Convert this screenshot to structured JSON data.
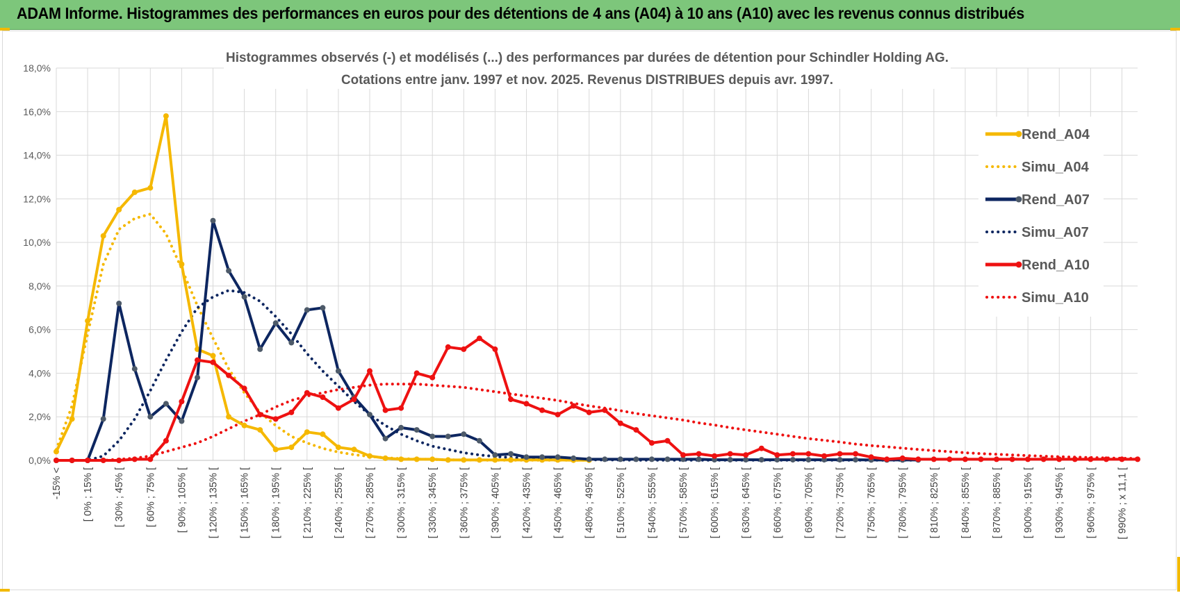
{
  "header": {
    "title": "ADAM Informe. Histogrammes des performances en euros pour des détentions de 4 ans (A04) à 10 ans (A10) avec les revenus connus distribués"
  },
  "colors": {
    "header_bg": "#7dc67b",
    "yellow": "#f5b800",
    "navy": "#0d2660",
    "red": "#ee1111",
    "grid": "#d9d9d9",
    "marker_gray": "#4d5a69"
  },
  "chart_data": {
    "type": "line",
    "title": "Histogrammes observés (-) et modélisés (...) des performances par durées de détention pour Schindler Holding AG.",
    "subtitle": "Cotations entre janv. 1997 et nov. 2025. Revenus DISTRIBUES depuis avr. 1997.",
    "xlabel": "",
    "ylabel": "",
    "ylim": [
      0,
      18
    ],
    "y_ticks": [
      "0,0%",
      "2,0%",
      "4,0%",
      "6,0%",
      "8,0%",
      "10,0%",
      "12,0%",
      "14,0%",
      "16,0%",
      "18,0%"
    ],
    "x_tick_labels": [
      "-15% <",
      "[ 0% ; 15% [",
      "[ 30% ; 45% [",
      "[ 60% ; 75% [",
      "[ 90% ; 105% [",
      "[ 120% ; 135% [",
      "[ 150% ; 165% [",
      "[ 180% ; 195% [",
      "[ 210% ; 225% [",
      "[ 240% ; 255% [",
      "[ 270% ; 285% [",
      "[ 300% ; 315% [",
      "[ 330% ; 345% [",
      "[ 360% ; 375% [",
      "[ 390% ; 405% [",
      "[ 420% ; 435% [",
      "[ 450% ; 465% [",
      "[ 480% ; 495% [",
      "[ 510% ; 525% [",
      "[ 540% ; 555% [",
      "[ 570% ; 585% [",
      "[ 600% ; 615% [",
      "[ 630% ; 645% [",
      "[ 660% ; 675% [",
      "[ 690% ; 705% [",
      "[ 720% ; 735% [",
      "[ 750% ; 765% [",
      "[ 780% ; 795% [",
      "[ 810% ; 825% [",
      "[ 840% ; 855% [",
      "[ 870% ; 885% [",
      "[ 900% ; 915% [",
      "[ 930% ; 945% [",
      "[ 960% ; 975% [",
      "[ 990% ; x 11,1 ["
    ],
    "category_count": 70,
    "grid": true,
    "legend_position": "right",
    "series": [
      {
        "name": "Rend_A04",
        "style": "solid",
        "color": "#f5b800",
        "marker_color": "#f5b800",
        "values": [
          0.4,
          1.9,
          6.4,
          10.3,
          11.5,
          12.3,
          12.5,
          15.8,
          9.0,
          5.1,
          4.8,
          2.0,
          1.6,
          1.4,
          0.5,
          0.6,
          1.3,
          1.2,
          0.6,
          0.5,
          0.2,
          0.1,
          0.05,
          0.05,
          0.05,
          0.02,
          0.02,
          0.02,
          0.02,
          0.02,
          0.02,
          0.02,
          0.02,
          0.01,
          0.01
        ]
      },
      {
        "name": "Simu_A04",
        "style": "dotted",
        "color": "#f5b800",
        "values": [
          0.5,
          2.5,
          5.8,
          9.0,
          10.6,
          11.1,
          11.3,
          10.4,
          8.8,
          7.1,
          5.6,
          4.2,
          3.1,
          2.2,
          1.6,
          1.1,
          0.8,
          0.55,
          0.38,
          0.26,
          0.18,
          0.12,
          0.08,
          0.06,
          0.04,
          0.03,
          0.02,
          0.01,
          0.01,
          0.01,
          0.01,
          0.01,
          0.01,
          0.01,
          0.01
        ]
      },
      {
        "name": "Rend_A07",
        "style": "solid",
        "color": "#0d2660",
        "marker_color": "#4d5a69",
        "values": [
          0,
          0,
          0,
          1.9,
          7.2,
          4.2,
          2.0,
          2.6,
          1.8,
          3.8,
          11.0,
          8.7,
          7.5,
          5.1,
          6.3,
          5.4,
          6.9,
          7.0,
          4.1,
          2.9,
          2.1,
          1.0,
          1.5,
          1.4,
          1.1,
          1.1,
          1.2,
          0.9,
          0.25,
          0.3,
          0.15,
          0.15,
          0.15,
          0.1,
          0.05,
          0.05,
          0.05,
          0.05,
          0.05,
          0.05,
          0.05,
          0.05,
          0.03,
          0.03,
          0.03,
          0.03,
          0.03,
          0.03,
          0.03,
          0.03,
          0.03,
          0.03,
          0.02,
          0.02,
          0.02,
          0.02
        ]
      },
      {
        "name": "Simu_A07",
        "style": "dotted",
        "color": "#0d2660",
        "values": [
          0,
          0,
          0,
          0.2,
          0.9,
          1.9,
          3.2,
          4.6,
          5.9,
          7.0,
          7.5,
          7.8,
          7.7,
          7.3,
          6.6,
          5.8,
          4.9,
          4.1,
          3.4,
          2.7,
          2.1,
          1.6,
          1.2,
          0.9,
          0.65,
          0.5,
          0.35,
          0.25,
          0.18,
          0.13,
          0.1,
          0.07,
          0.05,
          0.04,
          0.03,
          0.02,
          0.02,
          0.01,
          0.01,
          0.01,
          0.01,
          0.01,
          0.01,
          0.01,
          0.01,
          0.01,
          0.01,
          0.01,
          0.01,
          0.01,
          0.01,
          0.01,
          0.01,
          0.01,
          0.01,
          0.01
        ]
      },
      {
        "name": "Rend_A10",
        "style": "solid",
        "color": "#ee1111",
        "marker_color": "#ee1111",
        "values": [
          0,
          0,
          0,
          0,
          0,
          0.05,
          0.05,
          0.9,
          2.7,
          4.6,
          4.5,
          3.9,
          3.3,
          2.1,
          1.9,
          2.2,
          3.1,
          2.9,
          2.4,
          2.8,
          4.1,
          2.3,
          2.4,
          4.0,
          3.8,
          5.2,
          5.1,
          5.6,
          5.1,
          2.8,
          2.6,
          2.3,
          2.1,
          2.5,
          2.2,
          2.3,
          1.7,
          1.4,
          0.8,
          0.9,
          0.25,
          0.3,
          0.2,
          0.3,
          0.25,
          0.55,
          0.25,
          0.3,
          0.3,
          0.2,
          0.3,
          0.3,
          0.15,
          0.05,
          0.1,
          0.05,
          0.05,
          0.05,
          0.05,
          0.05,
          0.05,
          0.05,
          0.05,
          0.05,
          0.05,
          0.05,
          0.05,
          0.05,
          0.05,
          0.05
        ]
      },
      {
        "name": "Simu_A10",
        "style": "dotted",
        "color": "#ee1111",
        "values": [
          0,
          0,
          0,
          0,
          0.05,
          0.1,
          0.2,
          0.4,
          0.6,
          0.8,
          1.1,
          1.45,
          1.8,
          2.1,
          2.45,
          2.75,
          2.95,
          3.1,
          3.25,
          3.35,
          3.45,
          3.5,
          3.5,
          3.5,
          3.45,
          3.4,
          3.35,
          3.25,
          3.15,
          3.05,
          2.95,
          2.85,
          2.75,
          2.62,
          2.5,
          2.4,
          2.28,
          2.15,
          2.05,
          1.95,
          1.85,
          1.72,
          1.62,
          1.5,
          1.4,
          1.3,
          1.2,
          1.1,
          1.0,
          0.92,
          0.84,
          0.75,
          0.68,
          0.62,
          0.56,
          0.5,
          0.45,
          0.4,
          0.35,
          0.31,
          0.28,
          0.25,
          0.22,
          0.19,
          0.17,
          0.15,
          0.13,
          0.11,
          0.1,
          0.09
        ]
      }
    ]
  }
}
